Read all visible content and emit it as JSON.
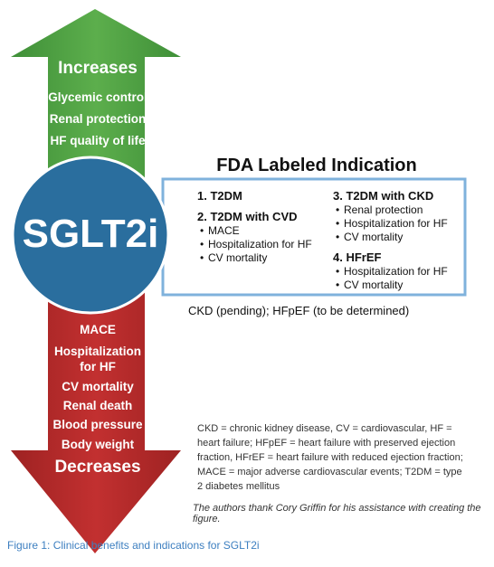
{
  "increases": {
    "title": "Increases",
    "items": [
      "Glycemic control",
      "Renal protection",
      "HF quality of life"
    ]
  },
  "center": "SGLT2i",
  "fda": {
    "title": "FDA Labeled Indication",
    "indications": [
      {
        "heading": "1. T2DM",
        "items": []
      },
      {
        "heading": "2. T2DM with CVD",
        "items": [
          "MACE",
          "Hospitalization for HF",
          "CV mortality"
        ]
      },
      {
        "heading": "3. T2DM with CKD",
        "items": [
          "Renal protection",
          "Hospitalization for HF",
          "CV mortality"
        ]
      },
      {
        "heading": "4. HFrEF",
        "items": [
          "Hospitalization for HF",
          "CV mortality"
        ]
      }
    ],
    "note": "CKD (pending); HFpEF (to be determined)"
  },
  "decreases": {
    "title": "Decreases",
    "items": [
      "MACE",
      "Hospitalization for HF",
      "CV mortality",
      "Renal death",
      "Blood pressure",
      "Body weight"
    ]
  },
  "abbreviations": "CKD = chronic kidney disease, CV = cardiovascular, HF = heart failure; HFpEF = heart failure with preserved ejection fraction, HFrEF = heart failure with reduced ejection fraction; MACE = major adverse cardiovascular events; T2DM = type 2 diabetes mellitus",
  "acknowledgment": "The authors thank Cory Griffin for his assistance with creating the figure.",
  "caption": "Figure 1: Clinical benefits and indications for SGLT2i"
}
